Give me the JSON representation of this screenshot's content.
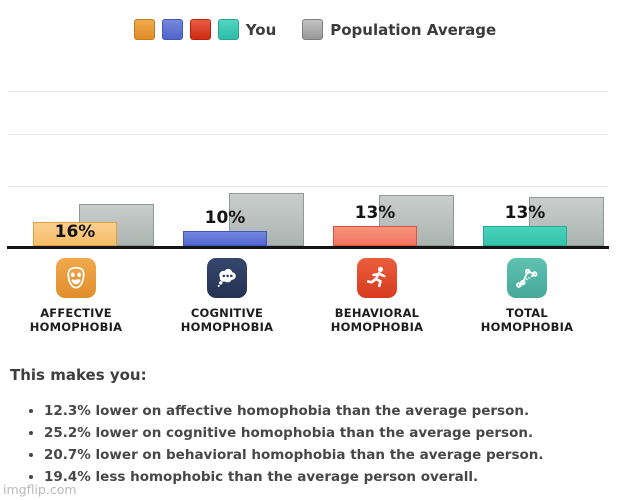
{
  "legend": {
    "you_label": "You",
    "population_label": "Population Average",
    "you_colors": [
      "#E89B35",
      "#5B74D6",
      "#D93A22",
      "#3CC9B4"
    ],
    "population_color": "#A9A9A9"
  },
  "chart_data": {
    "type": "bar",
    "categories": [
      "Affective Homophobia",
      "Cognitive Homophobia",
      "Behavioral Homophobia",
      "Total Homophobia"
    ],
    "series": [
      {
        "name": "You",
        "values": [
          16,
          10,
          13,
          13
        ],
        "labels": [
          "16%",
          "10%",
          "13%",
          "13%"
        ],
        "colors": [
          "#F7BD69",
          "#5B74D8",
          "#F5816C",
          "#3FCDB4"
        ]
      },
      {
        "name": "Population Average",
        "values": [
          28.3,
          35.2,
          33.7,
          32.4
        ],
        "labels": [
          "",
          "",
          "",
          ""
        ],
        "colors": [
          "#BCC3C0",
          "#BCC3C0",
          "#BCC3C0",
          "#BCC3C0"
        ]
      }
    ],
    "unit": "%",
    "ylim": [
      0,
      105
    ],
    "grid": "horizontal",
    "legend_position": "top",
    "value_labels_shown_for": "You"
  },
  "groups": [
    {
      "label": "AFFECTIVE\nHOMOPHOBIA",
      "icon": "theater-mask-icon"
    },
    {
      "label": "COGNITIVE\nHOMOPHOBIA",
      "icon": "thought-bubble-icon"
    },
    {
      "label": "BEHAVIORAL\nHOMOPHOBIA",
      "icon": "runner-icon"
    },
    {
      "label": "TOTAL\nHOMOPHOBIA",
      "icon": "line-graph-icon"
    }
  ],
  "summary": {
    "heading": "This makes you:",
    "bullets": [
      "12.3% lower on affective homophobia than the average person.",
      "25.2% lower on cognitive homophobia than the average person.",
      "20.7% lower on behavioral homophobia than the average person.",
      "19.4% less homophobic than the average person overall."
    ]
  },
  "watermark": "imgflip.com"
}
